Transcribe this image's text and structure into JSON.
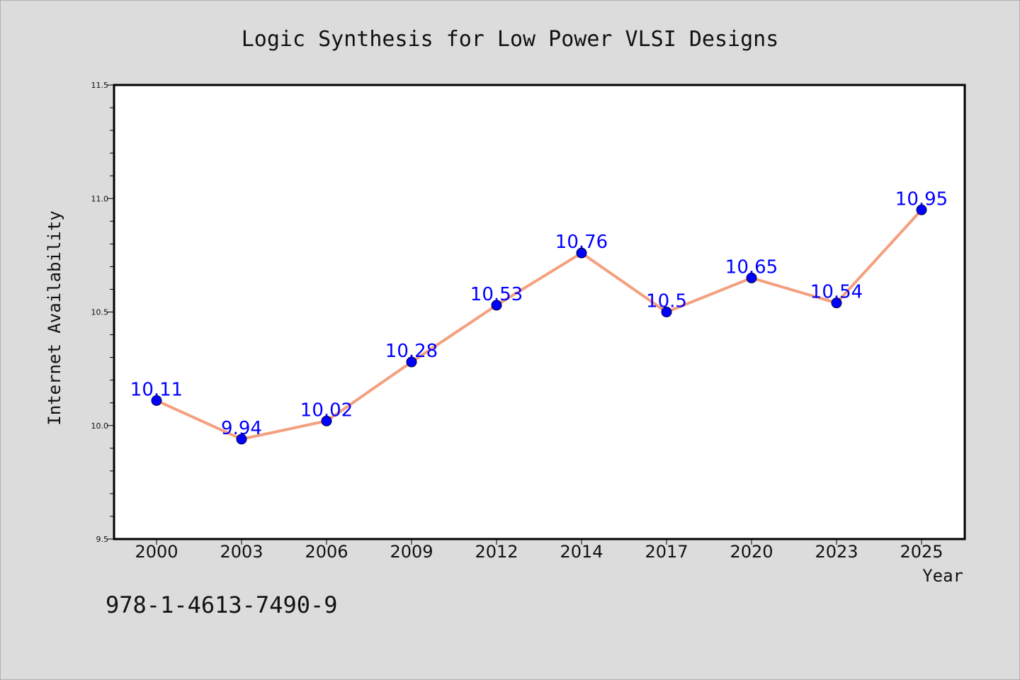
{
  "title": "Logic Synthesis for Low Power VLSI Designs",
  "footer_text": "978-1-4613-7490-9",
  "colors": {
    "background": "#dcdcdc",
    "plot_background": "#ffffff",
    "line": "#f4a07e",
    "marker": "#0000ff",
    "label": "#0000ff"
  },
  "chart_data": {
    "type": "line",
    "xlabel": "Year",
    "ylabel": "Internet Availability",
    "categories": [
      "2000",
      "2003",
      "2006",
      "2009",
      "2012",
      "2014",
      "2017",
      "2020",
      "2023",
      "2025"
    ],
    "series": [
      {
        "values": [
          10.11,
          9.94,
          10.02,
          10.28,
          10.53,
          10.76,
          10.5,
          10.65,
          10.54,
          10.95
        ],
        "data_labels": [
          "10.11",
          "9.94",
          "10.02",
          "10.28",
          "10.53",
          "10.76",
          "10.5",
          "10.65",
          "10.54",
          "10.95"
        ]
      }
    ],
    "ylim": [
      9.5,
      11.5
    ],
    "yticks": [
      "9.5",
      "10.0",
      "10.5",
      "11.0",
      "11.5"
    ],
    "grid": false,
    "legend": "none"
  }
}
